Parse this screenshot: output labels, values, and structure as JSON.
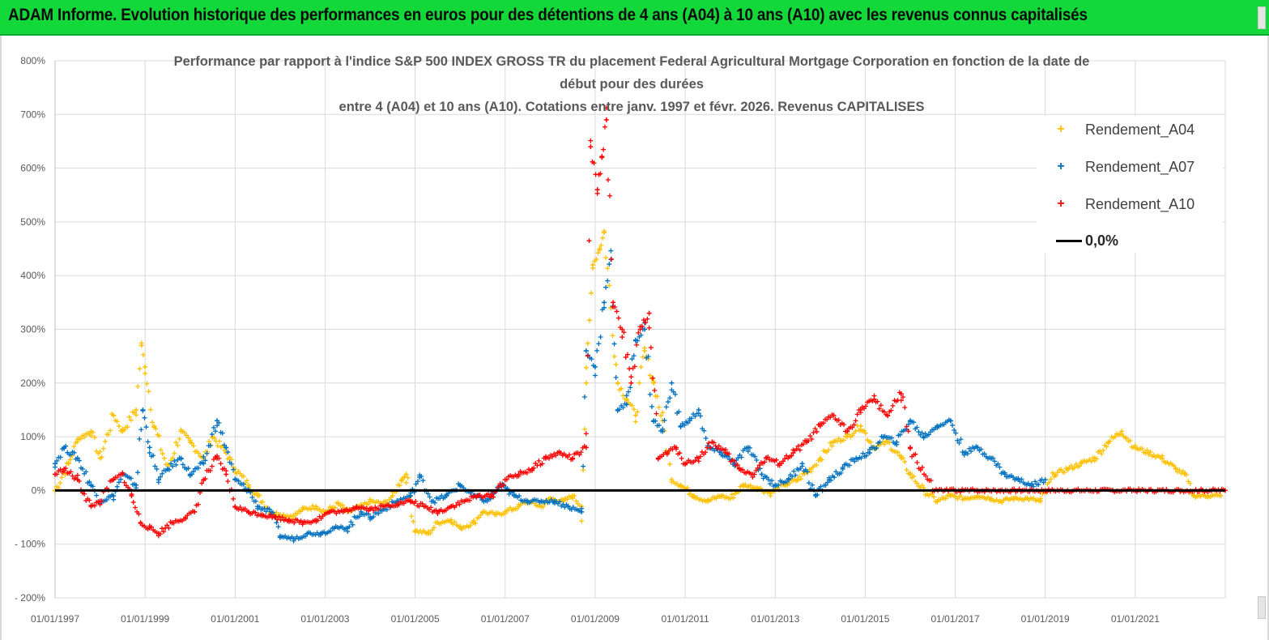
{
  "banner": {
    "title": "ADAM Informe. Evolution historique des performances en euros pour des détentions de 4 ans (A04) à 10 ans (A10) avec les revenus connus capitalisés"
  },
  "colors": {
    "banner": "#12d83a",
    "A04": "#ffc000",
    "A07": "#0070c0",
    "A10": "#ff0000",
    "zero": "#000000",
    "grid": "#d9d9d9",
    "axis_text": "#595959"
  },
  "chart_data": {
    "type": "scatter",
    "title_lines": [
      "Performance par rapport à l'indice S&P 500 INDEX GROSS TR  du placement Federal Agricultural Mortgage Corporation en fonction de la date de",
      "début pour des durées",
      "entre 4 (A04) et 10 ans (A10). Cotations entre janv. 1997 et févr. 2026. Revenus CAPITALISES"
    ],
    "xlabel": "",
    "ylabel": "",
    "x_range": [
      "1997-01-01",
      "2023-01-01"
    ],
    "ylim": [
      -200,
      800
    ],
    "y_ticks": [
      800,
      700,
      600,
      500,
      400,
      300,
      200,
      100,
      0,
      -100,
      -200
    ],
    "y_tick_labels": [
      "800%",
      "700%",
      "600%",
      "500%",
      "400%",
      "300%",
      "200%",
      "100%",
      "0%",
      "- 100%",
      "- 200%"
    ],
    "x_tick_years": [
      1997,
      1999,
      2001,
      2003,
      2005,
      2007,
      2009,
      2011,
      2013,
      2015,
      2017,
      2019,
      2021
    ],
    "x_tick_labels": [
      "01/01/1997",
      "01/01/1999",
      "01/01/2001",
      "01/01/2003",
      "01/01/2005",
      "01/01/2007",
      "01/01/2009",
      "01/01/2011",
      "01/01/2013",
      "01/01/2015",
      "01/01/2017",
      "01/01/2019",
      "01/01/2021"
    ],
    "legend_position": "top-right",
    "grid": true,
    "marker": "+",
    "series": [
      {
        "name": "Rendement_A04",
        "color": "#ffc000",
        "x": [
          1997.0,
          1997.3,
          1997.5,
          1997.8,
          1998.0,
          1998.3,
          1998.5,
          1998.8,
          1998.92,
          1999.0,
          1999.2,
          1999.5,
          1999.8,
          2000.0,
          2000.3,
          2000.5,
          2000.8,
          2001.0,
          2001.3,
          2001.5,
          2001.8,
          2002.0,
          2002.3,
          2002.5,
          2002.8,
          2003.0,
          2003.3,
          2003.5,
          2003.8,
          2004.0,
          2004.3,
          2004.5,
          2004.7,
          2004.8,
          2005.0,
          2005.3,
          2005.5,
          2005.8,
          2006.0,
          2006.3,
          2006.5,
          2006.8,
          2007.0,
          2007.3,
          2007.5,
          2007.8,
          2008.0,
          2008.3,
          2008.5,
          2008.7,
          2008.8,
          2008.95,
          2009.1,
          2009.2,
          2009.35,
          2009.5,
          2009.7,
          2009.9,
          2010.1,
          2010.3,
          2010.5,
          2010.7,
          2010.9,
          2011.2,
          2011.5,
          2011.8,
          2012.0,
          2012.3,
          2012.6,
          2012.9,
          2013.2,
          2013.5,
          2013.8,
          2014.0,
          2014.3,
          2014.6,
          2014.9,
          2015.2,
          2015.5,
          2015.8,
          2016.0,
          2016.3,
          2016.6,
          2016.9,
          2017.2,
          2017.5,
          2017.8,
          2018.0,
          2018.3,
          2018.6,
          2018.9,
          2019.2,
          2019.5,
          2019.8,
          2020.1,
          2020.4,
          2020.7,
          2021.0,
          2021.3,
          2021.6,
          2021.9,
          2022.1,
          2022.3,
          2022.6,
          2022.9
        ],
        "values": [
          0,
          50,
          95,
          110,
          60,
          140,
          110,
          150,
          270,
          230,
          120,
          40,
          110,
          90,
          60,
          100,
          70,
          40,
          10,
          -10,
          -40,
          -45,
          -48,
          -35,
          -30,
          -40,
          -25,
          -40,
          -30,
          -20,
          -25,
          -10,
          20,
          30,
          -75,
          -80,
          -60,
          -55,
          -70,
          -60,
          -40,
          -45,
          -40,
          -30,
          -20,
          -30,
          -15,
          -20,
          -10,
          -30,
          200,
          420,
          450,
          480,
          340,
          200,
          170,
          140,
          260,
          200,
          130,
          20,
          10,
          -10,
          -20,
          -10,
          -15,
          10,
          5,
          -5,
          10,
          20,
          40,
          60,
          90,
          100,
          120,
          80,
          90,
          60,
          30,
          0,
          -20,
          -10,
          -15,
          -10,
          -15,
          -20,
          -15,
          -15,
          -20,
          30,
          40,
          50,
          60,
          90,
          110,
          80,
          70,
          60,
          40,
          30,
          -10,
          -10,
          -10
        ]
      },
      {
        "name": "Rendement_A07",
        "color": "#0070c0",
        "x": [
          1997.0,
          1997.2,
          1997.5,
          1997.8,
          1998.0,
          1998.3,
          1998.5,
          1998.8,
          1998.95,
          1999.1,
          1999.3,
          1999.5,
          1999.8,
          2000.0,
          2000.3,
          2000.6,
          2000.8,
          2001.0,
          2001.3,
          2001.5,
          2001.8,
          2002.0,
          2002.3,
          2002.6,
          2002.9,
          2003.2,
          2003.5,
          2003.8,
          2004.0,
          2004.3,
          2004.6,
          2004.9,
          2005.1,
          2005.4,
          2005.7,
          2006.0,
          2006.3,
          2006.6,
          2006.9,
          2007.2,
          2007.5,
          2007.8,
          2008.1,
          2008.4,
          2008.7,
          2008.8,
          2009.0,
          2009.2,
          2009.35,
          2009.5,
          2009.7,
          2009.9,
          2010.1,
          2010.3,
          2010.5,
          2010.7,
          2010.9,
          2011.1,
          2011.3,
          2011.5,
          2011.8,
          2012.1,
          2012.4,
          2012.7,
          2013.0,
          2013.3,
          2013.6,
          2013.9,
          2014.2,
          2014.5,
          2014.8,
          2015.1,
          2015.4,
          2015.7,
          2016.0,
          2016.3,
          2016.6,
          2016.9,
          2017.2,
          2017.5,
          2017.8,
          2018.1,
          2018.4,
          2018.7,
          2019.0
        ],
        "values": [
          50,
          80,
          60,
          10,
          -20,
          -10,
          30,
          10,
          150,
          80,
          20,
          40,
          60,
          30,
          50,
          130,
          80,
          20,
          0,
          -30,
          -40,
          -85,
          -90,
          -80,
          -80,
          -70,
          -70,
          -40,
          -50,
          -35,
          -20,
          -10,
          25,
          -20,
          -10,
          10,
          -10,
          -20,
          10,
          -10,
          -20,
          -20,
          -20,
          -30,
          -40,
          260,
          230,
          350,
          430,
          150,
          160,
          280,
          300,
          130,
          110,
          200,
          120,
          130,
          150,
          80,
          70,
          50,
          80,
          30,
          10,
          20,
          50,
          -10,
          20,
          40,
          60,
          70,
          100,
          90,
          130,
          100,
          120,
          130,
          70,
          80,
          60,
          30,
          20,
          10,
          20
        ]
      },
      {
        "name": "Rendement_A10",
        "color": "#ff0000",
        "x": [
          1997.0,
          1997.2,
          1997.5,
          1997.8,
          1998.0,
          1998.3,
          1998.5,
          1998.7,
          1998.9,
          1999.1,
          1999.3,
          1999.6,
          1999.9,
          2000.1,
          2000.3,
          2000.6,
          2000.8,
          2001.0,
          2001.3,
          2001.6,
          2001.9,
          2002.2,
          2002.5,
          2002.8,
          2003.1,
          2003.4,
          2003.7,
          2004.0,
          2004.3,
          2004.6,
          2004.9,
          2005.2,
          2005.5,
          2005.8,
          2006.1,
          2006.4,
          2006.7,
          2007.0,
          2007.3,
          2007.6,
          2007.9,
          2008.2,
          2008.5,
          2008.8,
          2008.9,
          2009.05,
          2009.15,
          2009.25,
          2009.4,
          2009.6,
          2009.8,
          2010.0,
          2010.2,
          2010.4,
          2010.6,
          2010.8,
          2011.0,
          2011.3,
          2011.6,
          2011.9,
          2012.2,
          2012.5,
          2012.8,
          2013.1,
          2013.4,
          2013.7,
          2014.0,
          2014.3,
          2014.6,
          2014.9,
          2015.2,
          2015.5,
          2015.8,
          2016.0,
          2016.5,
          2017.0,
          2017.5,
          2018.0,
          2018.5,
          2019.0,
          2019.5,
          2020.0,
          2020.5,
          2021.0,
          2021.5,
          2022.0,
          2022.5,
          2023.0
        ],
        "values": [
          30,
          40,
          20,
          -30,
          -20,
          20,
          30,
          -10,
          -60,
          -70,
          -80,
          -60,
          -50,
          -40,
          20,
          60,
          30,
          -30,
          -40,
          -45,
          -50,
          -55,
          -60,
          -55,
          -40,
          -40,
          -30,
          -35,
          -30,
          -25,
          -20,
          -30,
          -40,
          -30,
          -20,
          -10,
          -10,
          20,
          30,
          40,
          60,
          70,
          60,
          80,
          640,
          560,
          620,
          690,
          350,
          300,
          200,
          300,
          330,
          60,
          70,
          80,
          50,
          60,
          90,
          70,
          40,
          30,
          60,
          50,
          70,
          90,
          120,
          140,
          110,
          150,
          170,
          140,
          180,
          80,
          0,
          0,
          0,
          0,
          0,
          0,
          0,
          0,
          0,
          0,
          0,
          0,
          0,
          0
        ]
      },
      {
        "name": "0,0%",
        "color": "#000000",
        "type": "line",
        "x": [
          1997.0,
          2023.0
        ],
        "values": [
          0,
          0
        ]
      }
    ]
  }
}
